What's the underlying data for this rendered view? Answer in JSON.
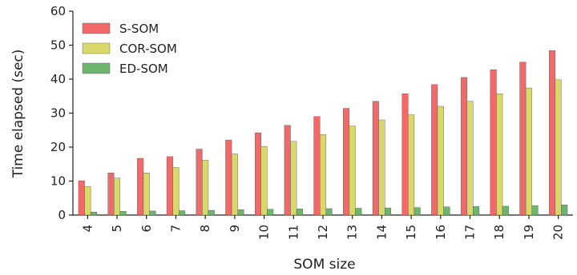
{
  "chart_data": {
    "type": "bar",
    "title": "",
    "xlabel": "SOM size",
    "ylabel": "Time elapsed (sec)",
    "ylim": [
      0,
      60
    ],
    "yticks": [
      0,
      10,
      20,
      30,
      40,
      50,
      60
    ],
    "categories": [
      "4",
      "5",
      "6",
      "7",
      "8",
      "9",
      "10",
      "11",
      "12",
      "13",
      "14",
      "15",
      "16",
      "17",
      "18",
      "19",
      "20"
    ],
    "series": [
      {
        "name": "S-SOM",
        "color": "#f06a6a",
        "values": [
          10.1,
          12.4,
          16.7,
          17.2,
          19.4,
          22.1,
          24.2,
          26.4,
          29.0,
          31.4,
          33.5,
          35.7,
          38.4,
          40.5,
          42.8,
          45.0,
          48.4
        ]
      },
      {
        "name": "COR-SOM",
        "color": "#d9d86b",
        "values": [
          8.4,
          10.9,
          12.4,
          14.0,
          16.2,
          18.0,
          20.2,
          21.7,
          23.7,
          26.2,
          28.0,
          29.5,
          32.0,
          33.5,
          35.7,
          37.4,
          39.8
        ]
      },
      {
        "name": "ED-SOM",
        "color": "#6db56d",
        "values": [
          0.9,
          1.1,
          1.2,
          1.3,
          1.4,
          1.6,
          1.7,
          1.8,
          1.9,
          2.0,
          2.1,
          2.2,
          2.4,
          2.5,
          2.6,
          2.8,
          3.0
        ]
      }
    ],
    "legend": {
      "position": "top-left"
    },
    "grid": false
  }
}
